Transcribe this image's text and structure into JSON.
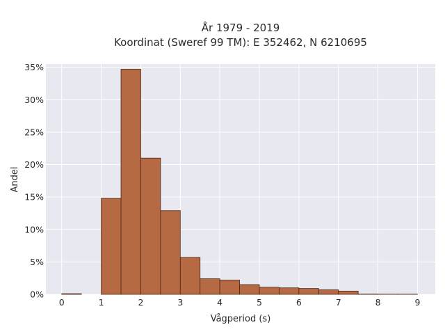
{
  "chart_data": {
    "type": "bar",
    "title": "År 1979 - 2019",
    "subtitle": "Koordinat (Sweref 99 TM): E 352462, N 6210695",
    "xlabel": "Vågperiod (s)",
    "ylabel": "Andel",
    "xlim": [
      -0.4,
      9.45
    ],
    "ylim": [
      0,
      0.355
    ],
    "x_ticks": [
      0,
      1,
      2,
      3,
      4,
      5,
      6,
      7,
      8,
      9
    ],
    "x_tick_labels": [
      "0",
      "1",
      "2",
      "3",
      "4",
      "5",
      "6",
      "7",
      "8",
      "9"
    ],
    "y_ticks": [
      0,
      0.05,
      0.1,
      0.15,
      0.2,
      0.25,
      0.3,
      0.35
    ],
    "y_tick_labels": [
      "0%",
      "5%",
      "10%",
      "15%",
      "20%",
      "25%",
      "30%",
      "35%"
    ],
    "bin_width": 0.5,
    "bins": [
      {
        "x0": 0.0,
        "value": 0.001
      },
      {
        "x0": 0.5,
        "value": 0.0
      },
      {
        "x0": 1.0,
        "value": 0.148
      },
      {
        "x0": 1.5,
        "value": 0.347
      },
      {
        "x0": 2.0,
        "value": 0.21
      },
      {
        "x0": 2.5,
        "value": 0.129
      },
      {
        "x0": 3.0,
        "value": 0.057
      },
      {
        "x0": 3.5,
        "value": 0.024
      },
      {
        "x0": 4.0,
        "value": 0.022
      },
      {
        "x0": 4.5,
        "value": 0.015
      },
      {
        "x0": 5.0,
        "value": 0.011
      },
      {
        "x0": 5.5,
        "value": 0.01
      },
      {
        "x0": 6.0,
        "value": 0.009
      },
      {
        "x0": 6.5,
        "value": 0.007
      },
      {
        "x0": 7.0,
        "value": 0.005
      },
      {
        "x0": 7.5,
        "value": 0.0005
      },
      {
        "x0": 8.0,
        "value": 0.0003
      },
      {
        "x0": 8.5,
        "value": 0.0003
      }
    ],
    "grid": true,
    "colors": {
      "bar_fill": "#b56a44",
      "bar_stroke": "#4a2818",
      "plot_background": "#e8e8f0",
      "grid": "#ffffff"
    }
  }
}
